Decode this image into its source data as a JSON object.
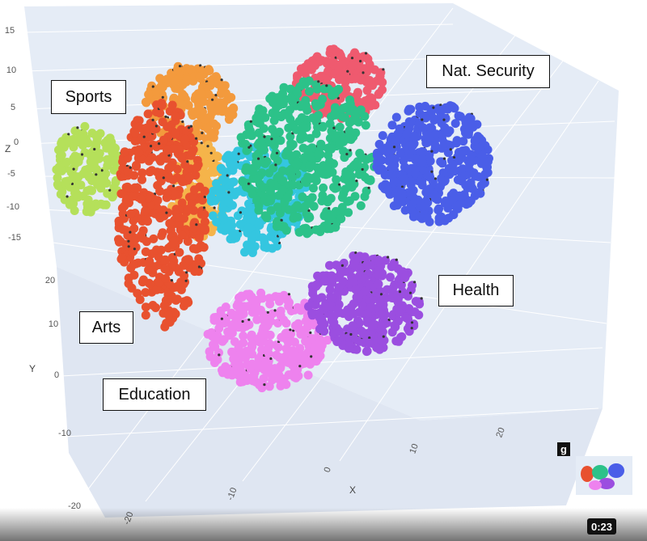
{
  "plot": {
    "z_axis": {
      "title": "Z",
      "ticks": [
        "15",
        "10",
        "5",
        "0",
        "-5",
        "-10",
        "-15"
      ]
    },
    "y_axis": {
      "title": "Y",
      "ticks": [
        "20",
        "10",
        "0",
        "-10",
        "-20"
      ]
    },
    "x_axis": {
      "title": "X",
      "ticks": [
        "-20",
        "-10",
        "0",
        "10",
        "20"
      ]
    }
  },
  "annotations": [
    "Sports",
    "Nat. Security",
    "Health",
    "Arts",
    "Education"
  ],
  "player": {
    "timestamp": "0:23",
    "logo": "g"
  }
}
